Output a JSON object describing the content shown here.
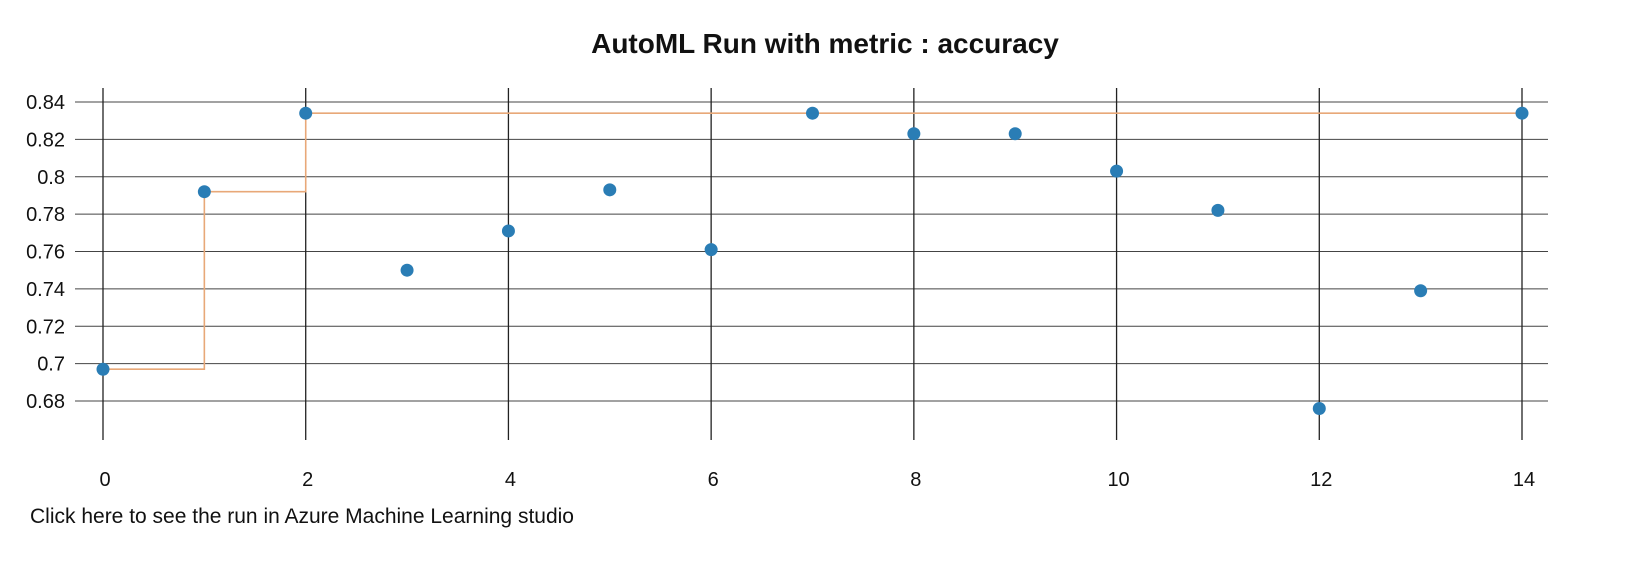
{
  "chart_data": {
    "type": "scatter",
    "title": "AutoML Run with metric : accuracy",
    "xlabel": "",
    "ylabel": "",
    "xlim": [
      0,
      14
    ],
    "ylim": [
      0.66,
      0.84
    ],
    "x_ticks": [
      0,
      2,
      4,
      6,
      8,
      10,
      12,
      14
    ],
    "y_ticks": [
      0.68,
      0.7,
      0.72,
      0.74,
      0.76,
      0.78,
      0.8,
      0.82,
      0.84
    ],
    "grid": true,
    "series": [
      {
        "mode": "markers",
        "color": "#2a7db5",
        "x": [
          0,
          1,
          2,
          3,
          4,
          5,
          6,
          7,
          8,
          9,
          10,
          11,
          12,
          13,
          14
        ],
        "y": [
          0.697,
          0.792,
          0.834,
          0.75,
          0.771,
          0.793,
          0.761,
          0.834,
          0.823,
          0.823,
          0.803,
          0.782,
          0.676,
          0.739,
          0.834
        ]
      },
      {
        "mode": "step",
        "color": "#e8a878",
        "x": [
          0,
          1,
          2,
          14
        ],
        "y": [
          0.697,
          0.792,
          0.834,
          0.834
        ]
      }
    ]
  },
  "footer": {
    "link_text": "Click here to see the run in Azure Machine Learning studio"
  }
}
